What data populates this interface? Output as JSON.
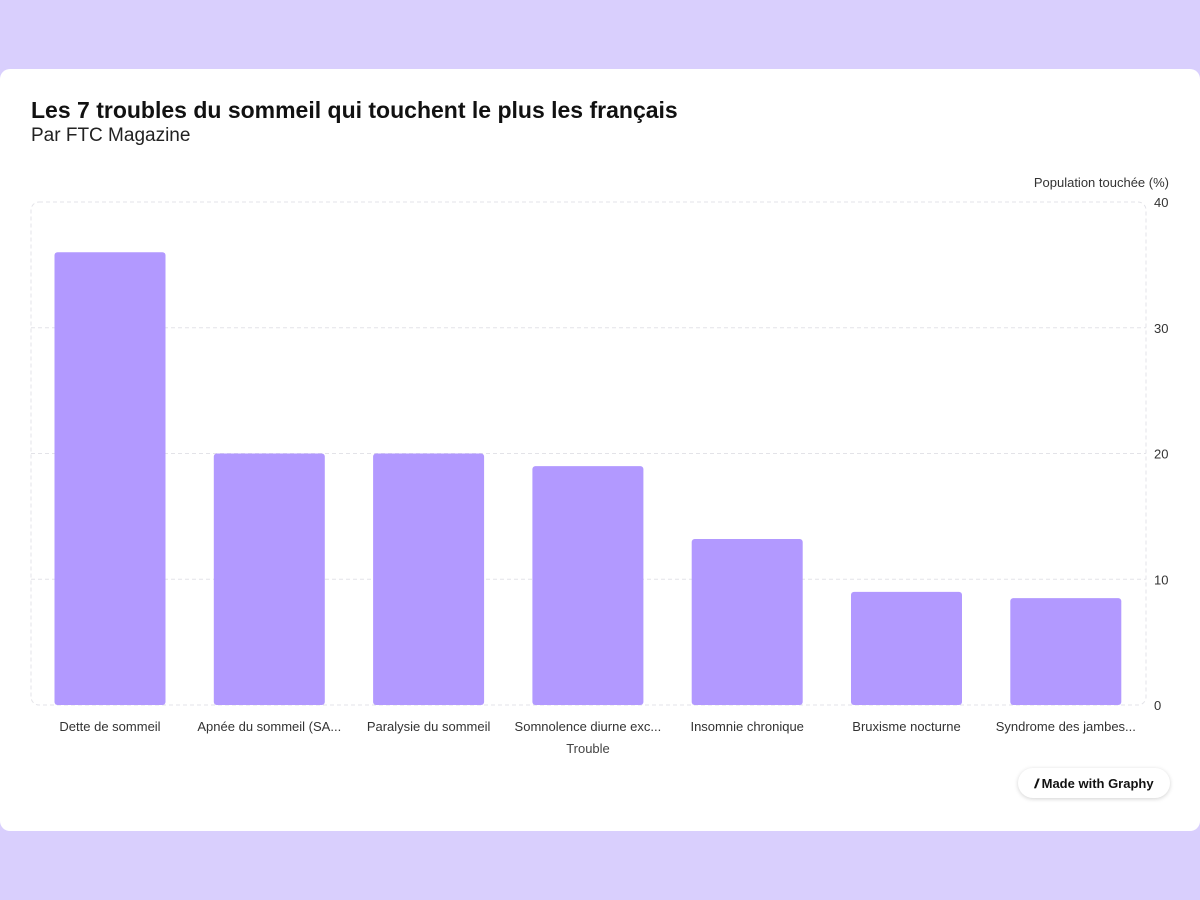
{
  "header": {
    "title": "Les 7 troubles du sommeil qui touchent le plus les français",
    "subtitle": "Par FTC Magazine"
  },
  "badge": {
    "label": "Made with Graphy",
    "icon": "graphy-logo-icon"
  },
  "colors": {
    "background": "#d9cffd",
    "bar": "#b299ff",
    "grid": "#e3e3e8"
  },
  "chart_data": {
    "type": "bar",
    "title": "Les 7 troubles du sommeil qui touchent le plus les français",
    "subtitle": "Par FTC Magazine",
    "xlabel": "Trouble",
    "ylabel": "Population touchée (%)",
    "categories": [
      "Dette de sommeil",
      "Apnée du sommeil (SA...",
      "Paralysie du sommeil",
      "Somnolence diurne exc...",
      "Insomnie chronique",
      "Bruxisme nocturne",
      "Syndrome des jambes..."
    ],
    "values": [
      36,
      20,
      20,
      19,
      13.2,
      9,
      8.5
    ],
    "ylim": [
      0,
      40
    ],
    "yticks": [
      0,
      10,
      20,
      30,
      40
    ],
    "y_axis_side": "right",
    "grid": true
  }
}
